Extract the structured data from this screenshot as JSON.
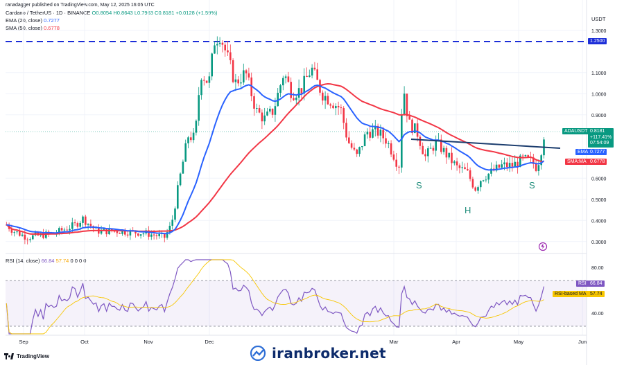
{
  "publisher_line": "ranadagger published on TradingView.com, May 12, 2025 16:05 UTC",
  "header": {
    "symbol": "Cardano / TetherUS · 1D · BINANCE",
    "o": "O0.8054",
    "h": "H0.8643",
    "l": "L0.7963",
    "c": "C0.8181",
    "chg": "+0.0128 (+1.59%)",
    "ema_label": "EMA (20, close)",
    "ema_value": "0.7277",
    "sma_label": "SMA (50, close)",
    "sma_value": "0.6778"
  },
  "currency": "USDT",
  "price_axis_ticks": [
    "1.3000",
    "1.2500",
    "1.1000",
    "1.0000",
    "0.9000",
    "0.6000",
    "0.5000",
    "0.4000",
    "0.3000"
  ],
  "labels": {
    "resistance": "1.2500",
    "symbol_tag": "ADAUSDT",
    "last_price": "0.8181",
    "pct_change": "+117.41%",
    "countdown": "07:54:09",
    "ema_tag": "EMA",
    "ema_value": "0.7277",
    "sma_tag": "SMA:MA",
    "sma_value": "0.6778",
    "left_shoulder": "S",
    "head": "H",
    "right_shoulder": "S"
  },
  "rsi": {
    "header_label": "RSI (14, close)",
    "rsi_value": "66.84",
    "ma_value": "57.74",
    "zeros": "0 0 0 0",
    "tick_80": "80.00",
    "tick_40": "40.00",
    "tag_rsi": "RSI",
    "tag_ma": "RSI-based MA"
  },
  "time_axis": [
    "Sep",
    "Oct",
    "Nov",
    "Dec",
    "Mar",
    "Apr",
    "May",
    "Jun"
  ],
  "watermark": "iranbroker.net",
  "tv_brand": "TradingView",
  "colors": {
    "up": "#089981",
    "down": "#f23645",
    "ema": "#2962ff",
    "sma": "#f23645",
    "rsi": "#7e57c2",
    "rsi_ma": "#f7c600",
    "neckline": "#1c3d6e",
    "resistance": "#1c2ed8"
  },
  "chart_data": {
    "type": "candlestick",
    "symbol": "ADAUSDT",
    "interval": "1D",
    "resistance_level": 1.25,
    "ylim": [
      0.25,
      1.35
    ],
    "rsi_levels": [
      70,
      30
    ],
    "key_points": [
      {
        "date": "Sep",
        "price": 0.33
      },
      {
        "date": "Oct",
        "price": 0.38
      },
      {
        "date": "Nov",
        "price": 0.34
      },
      {
        "date": "Dec",
        "price": 1.3
      },
      {
        "date": "Mar",
        "price": 1.17
      },
      {
        "date": "Apr",
        "price": 0.53
      },
      {
        "date": "May",
        "price": 0.8181
      }
    ],
    "last": {
      "open": 0.8054,
      "high": 0.8643,
      "low": 0.7963,
      "close": 0.8181,
      "change": 0.0128,
      "change_pct": 1.59
    },
    "ema20": 0.7277,
    "sma50": 0.6778,
    "rsi14": 66.84,
    "rsi_ma": 57.74
  }
}
